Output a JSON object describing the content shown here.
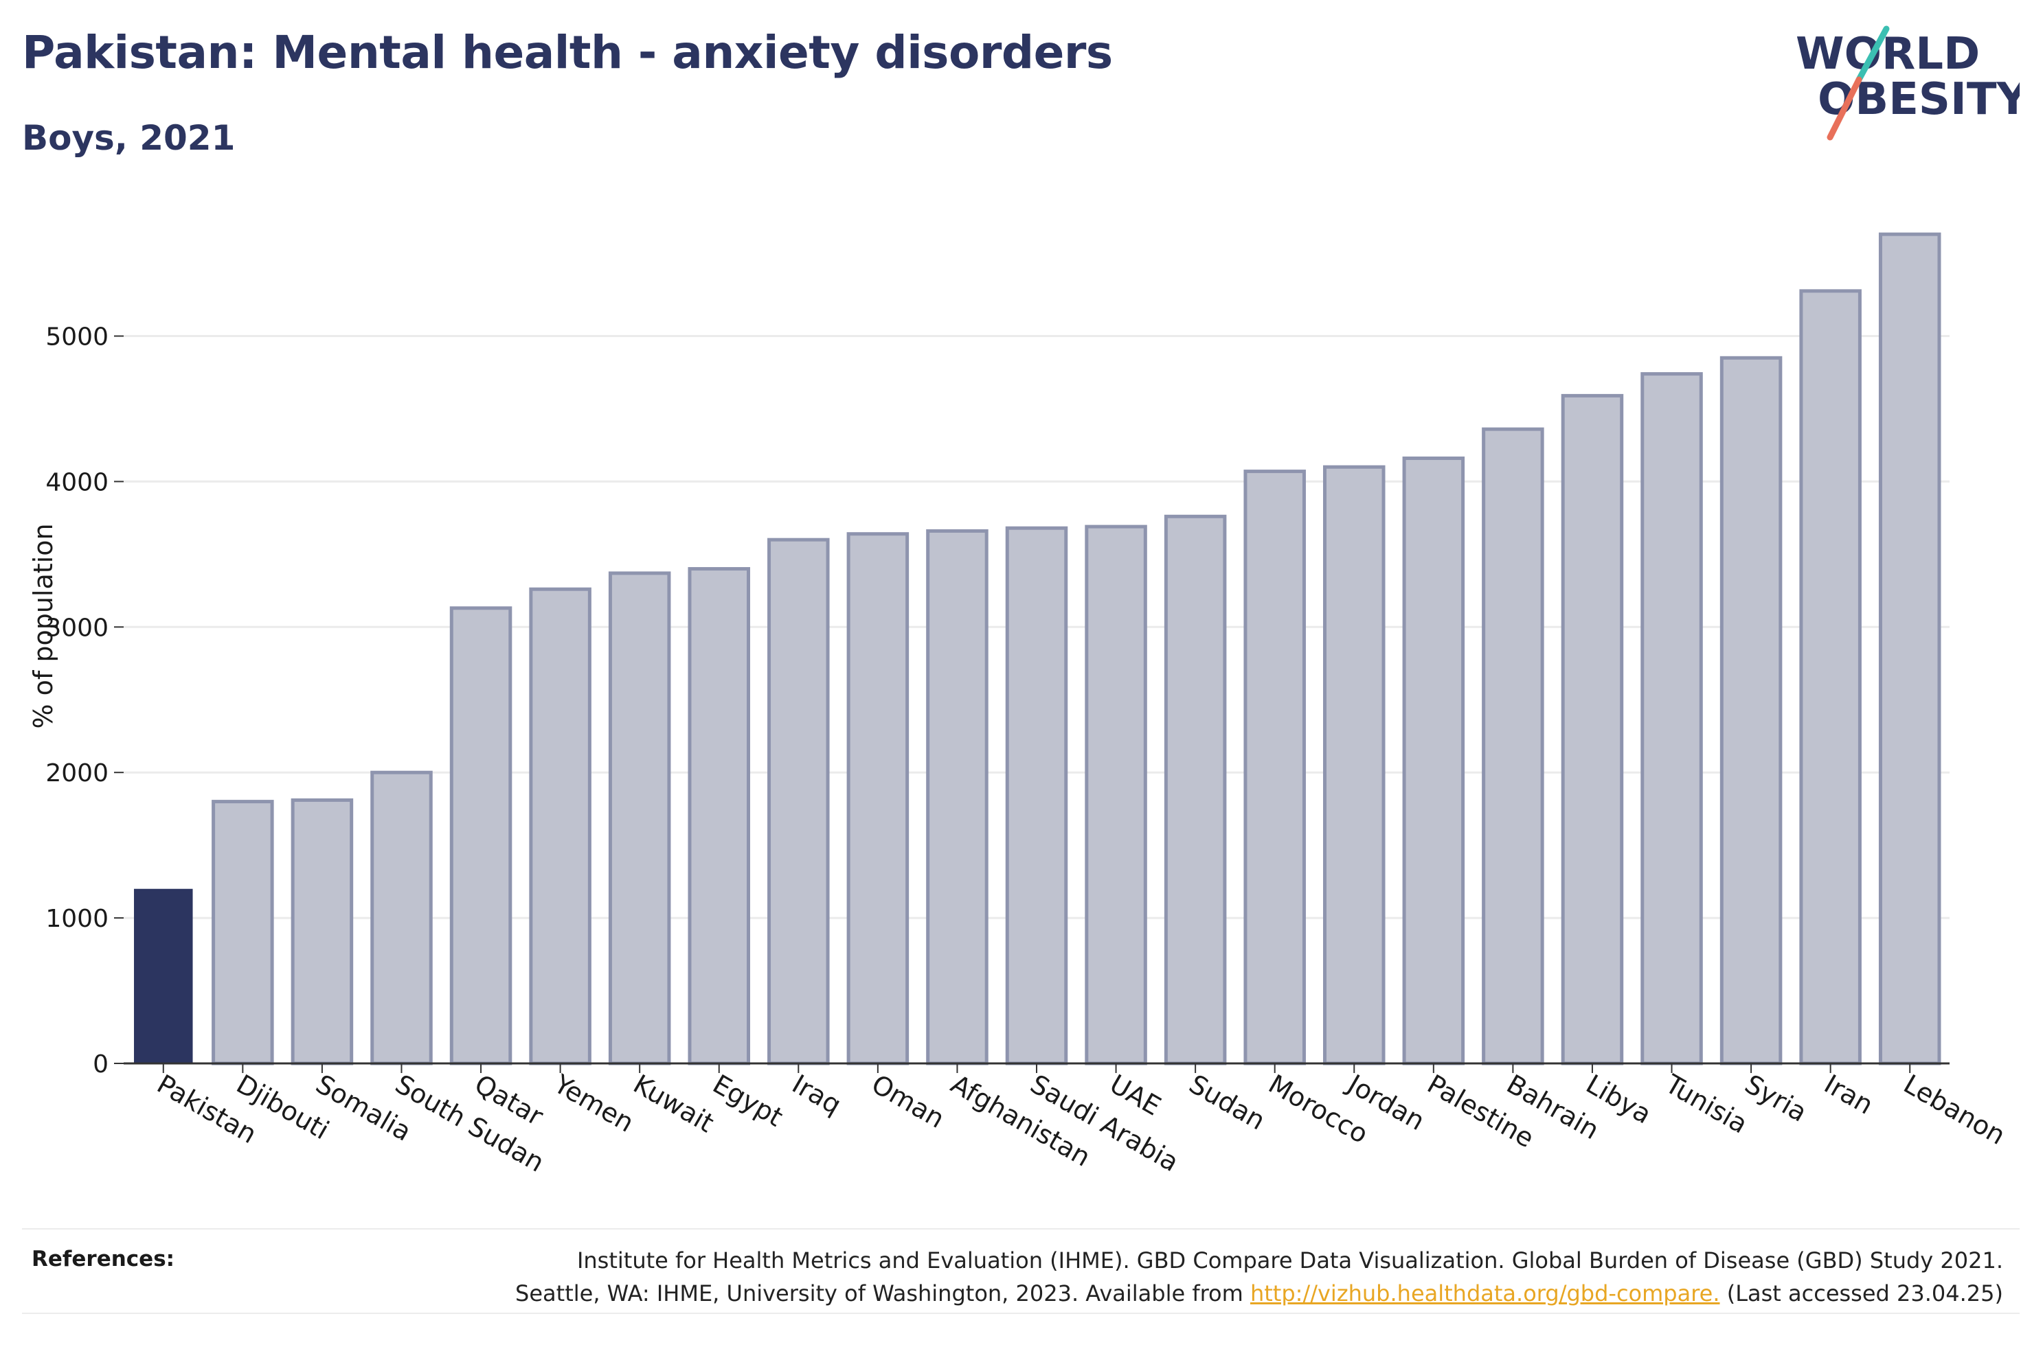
{
  "header": {
    "title": "Pakistan: Mental health - anxiety disorders",
    "subtitle": "Boys, 2021"
  },
  "logo": {
    "line1": "WORLD",
    "line2": "OBESITY"
  },
  "colors": {
    "highlight": "#2c3560",
    "bar_fill": "#bfc2cf",
    "bar_stroke": "#8e94ae",
    "text_dark": "#2c3560"
  },
  "chart_data": {
    "type": "bar",
    "title": "Pakistan: Mental health - anxiety disorders",
    "subtitle": "Boys, 2021",
    "ylabel": "% of population",
    "xlabel": "",
    "ylim": [
      0,
      5800
    ],
    "yticks": [
      0,
      1000,
      2000,
      3000,
      4000,
      5000
    ],
    "grid": true,
    "highlight_category": "Pakistan",
    "categories": [
      "Pakistan",
      "Djibouti",
      "Somalia",
      "South Sudan",
      "Qatar",
      "Yemen",
      "Kuwait",
      "Egypt",
      "Iraq",
      "Oman",
      "Afghanistan",
      "Saudi Arabia",
      "UAE",
      "Sudan",
      "Morocco",
      "Jordan",
      "Palestine",
      "Bahrain",
      "Libya",
      "Tunisia",
      "Syria",
      "Iran",
      "Lebanon"
    ],
    "values": [
      1200,
      1800,
      1810,
      2000,
      3130,
      3260,
      3370,
      3400,
      3600,
      3640,
      3660,
      3680,
      3690,
      3760,
      4070,
      4100,
      4160,
      4360,
      4590,
      4740,
      4850,
      5310,
      5700
    ]
  },
  "references": {
    "label": "References:",
    "line1": "Institute for Health Metrics and Evaluation (IHME). GBD Compare Data Visualization. Global Burden of Disease (GBD) Study 2021.",
    "line2_pre": "Seattle, WA: IHME, University of Washington, 2023. Available from ",
    "link": "http://vizhub.healthdata.org/gbd-compare.",
    "line2_post": " (Last accessed 23.04.25)"
  }
}
